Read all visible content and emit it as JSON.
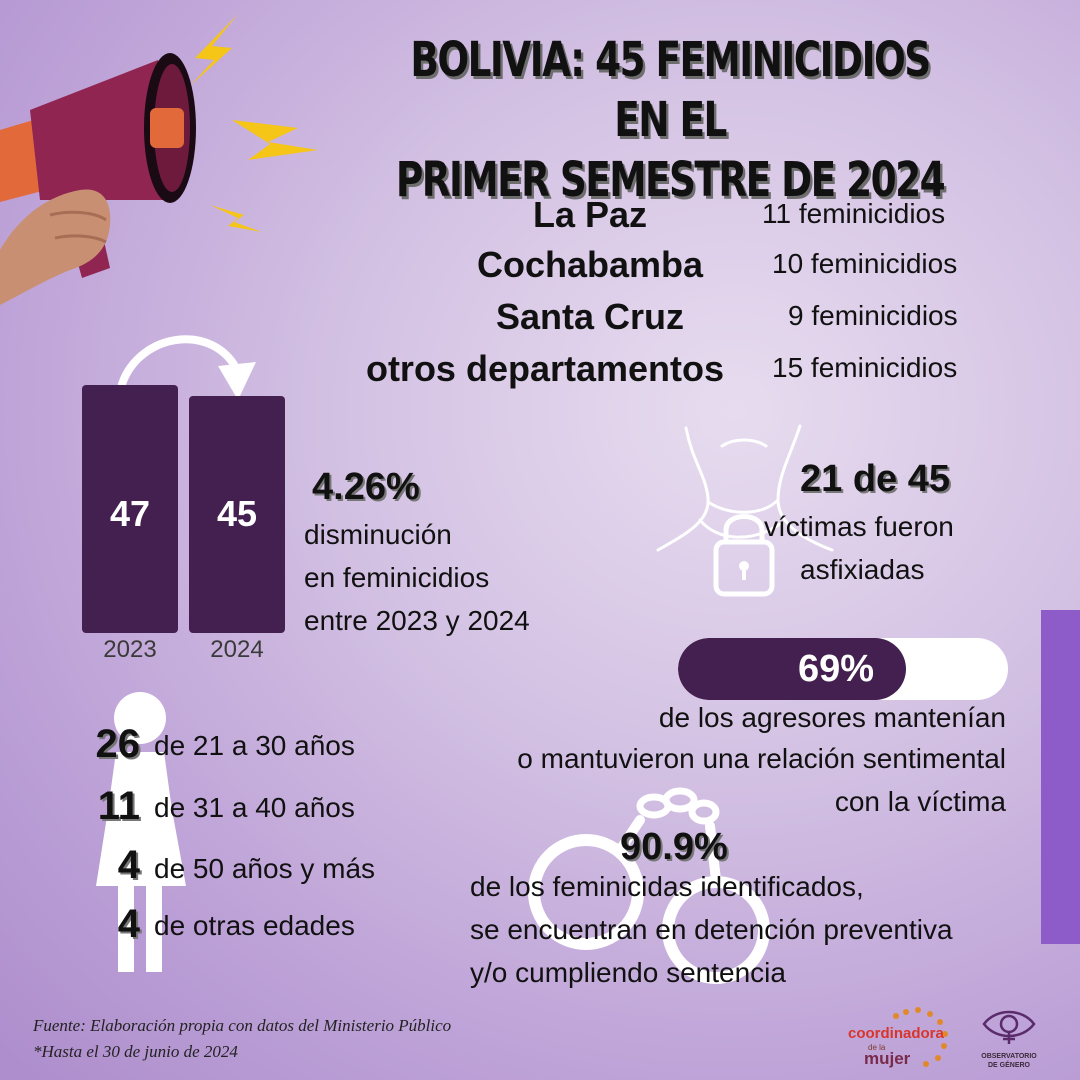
{
  "title": {
    "line1": "BOLIVIA: 45 FEMINICIDIOS EN EL",
    "line2": "PRIMER SEMESTRE DE 2024"
  },
  "departments": [
    {
      "name": "La Paz",
      "count": "11 feminicidios"
    },
    {
      "name": "Cochabamba",
      "count": "10 feminicidios"
    },
    {
      "name": "Santa Cruz",
      "count": "9 feminicidios"
    },
    {
      "name": "otros departamentos",
      "count": "15 feminicidios"
    }
  ],
  "comparison": {
    "bars": [
      {
        "year": "2023",
        "value": "47"
      },
      {
        "year": "2024",
        "value": "45"
      }
    ],
    "percent": "4.26%",
    "line1": "disminución",
    "line2": "en feminicidios",
    "line3": "entre 2023 y 2024"
  },
  "asphyxia": {
    "stat": "21 de 45",
    "line1": "víctimas fueron",
    "line2": "asfixiadas"
  },
  "aggressors": {
    "percent": "69%",
    "progress": 0.69,
    "line1": "de los agresores mantenían",
    "line2": "o mantuvieron una relación sentimental",
    "line3": "con la víctima"
  },
  "ages": [
    {
      "count": "26",
      "label": "de 21 a 30 años"
    },
    {
      "count": "11",
      "label": "de 31 a 40 años"
    },
    {
      "count": "4",
      "label": "de 50 años y más"
    },
    {
      "count": "4",
      "label": "de otras edades"
    }
  ],
  "detention": {
    "percent": "90.9%",
    "line1": "de los feminicidas identificados,",
    "line2": "se encuentran en detención preventiva",
    "line3": "y/o cumpliendo sentencia"
  },
  "footer": {
    "source": "Fuente: Elaboración propia con datos del Ministerio Público",
    "note": "*Hasta el 30 de junio de 2024"
  },
  "logos": {
    "coordinadora_text": "coordinadora de la mujer",
    "observatorio_text": "OBSERVATORIO DE GÉNERO"
  },
  "colors": {
    "bar": "#43204f",
    "accent_strip": "#8d5cc8",
    "megaphone": "#8f2550",
    "lightning": "#f5c518"
  }
}
